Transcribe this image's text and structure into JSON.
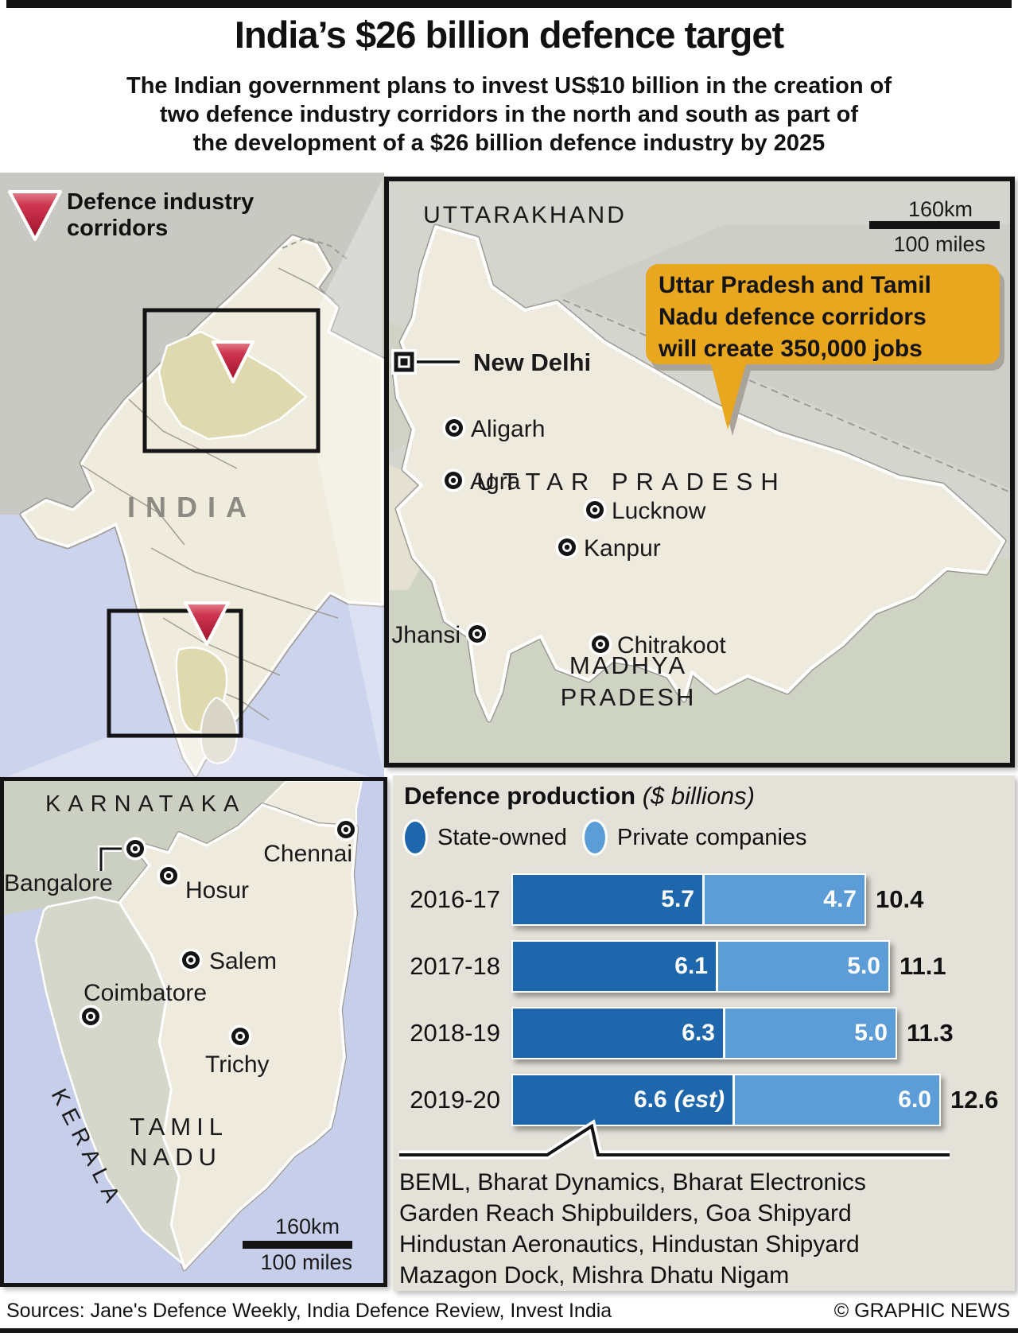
{
  "title": "India’s $26 billion defence target",
  "subtitle_lines": [
    "The Indian government plans to invest US$10 billion in the creation of",
    "two defence industry corridors in the north and south as part of",
    "the development of a $26 billion defence industry by 2025"
  ],
  "overview_map": {
    "legend_line1": "Defence industry",
    "legend_line2": "corridors",
    "country_label": "INDIA"
  },
  "up_map": {
    "neighbor_north": "UTTARAKHAND",
    "state_label": "UTTAR PRADESH",
    "neighbor_south_line1": "MADHYA",
    "neighbor_south_line2": "PRADESH",
    "capital": {
      "name": "New Delhi"
    },
    "cities": [
      {
        "name": "Aligarh"
      },
      {
        "name": "Agra"
      },
      {
        "name": "Lucknow"
      },
      {
        "name": "Kanpur"
      },
      {
        "name": "Jhansi"
      },
      {
        "name": "Chitrakoot"
      }
    ],
    "scale_km": "160km",
    "scale_miles": "100 miles",
    "callout_lines": [
      "Uttar Pradesh and Tamil",
      "Nadu defence corridors",
      "will create 350,000 jobs"
    ]
  },
  "tn_map": {
    "neighbor_north": "KARNATAKA",
    "neighbor_west": "KERALA",
    "state_line1": "TAMIL",
    "state_line2": "NADU",
    "cities": [
      {
        "name": "Bangalore"
      },
      {
        "name": "Hosur"
      },
      {
        "name": "Chennai"
      },
      {
        "name": "Salem"
      },
      {
        "name": "Coimbatore"
      },
      {
        "name": "Trichy"
      }
    ],
    "scale_km": "160km",
    "scale_miles": "100 miles"
  },
  "chart_data": {
    "type": "bar",
    "orientation": "horizontal",
    "stacked": true,
    "title": "Defence production",
    "unit_label": "($ billions)",
    "legend_position": "top",
    "categories": [
      "2016-17",
      "2017-18",
      "2018-19",
      "2019-20"
    ],
    "series": [
      {
        "name": "State-owned",
        "color": "#1f67ac",
        "values": [
          5.7,
          6.1,
          6.3,
          6.6
        ]
      },
      {
        "name": "Private companies",
        "color": "#5c9cd7",
        "values": [
          4.7,
          5.0,
          5.0,
          6.0
        ]
      }
    ],
    "totals": [
      10.4,
      11.1,
      11.3,
      12.6
    ],
    "estimate_row": 3,
    "estimate_note": "(est)",
    "xlim": [
      0,
      13
    ],
    "footnote_lines": [
      "BEML, Bharat Dynamics, Bharat Electronics",
      "Garden Reach Shipbuilders, Goa Shipyard",
      "Hindustan Aeronautics, Hindustan Shipyard",
      "Mazagon Dock, Mishra Dhatu Nigam"
    ]
  },
  "footer": {
    "sources": "Sources: Jane's Defence Weekly, India Defence Review, Invest India",
    "credit": "© GRAPHIC NEWS"
  },
  "colors": {
    "callout_bg": "#e9a61f",
    "triangle_red": "#c22440",
    "state_owned_blue": "#1f67ac",
    "private_blue": "#5c9cd7",
    "land_cream": "#efebdd",
    "sea_blue": "#ccd3ec",
    "highlight_khaki": "#ded9ae"
  }
}
